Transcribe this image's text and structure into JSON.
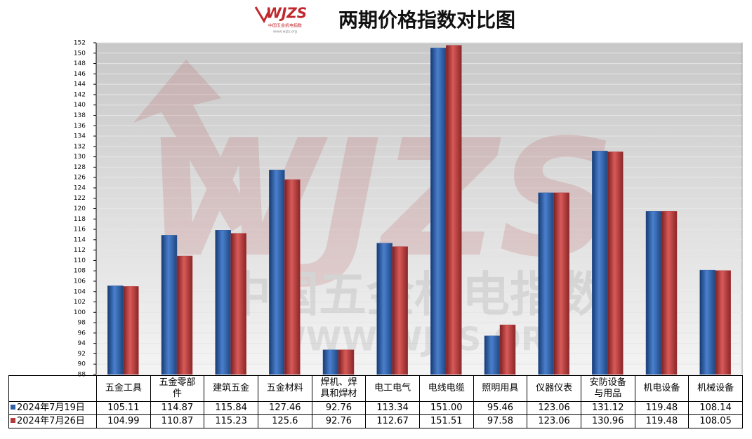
{
  "chart_data": {
    "type": "bar",
    "title": "两期价格指数对比图",
    "logo": {
      "brand": "WJZS",
      "subtitle": "中国五金机电指数",
      "url": "www.wjzs.org"
    },
    "watermark": {
      "brand": "WJZS",
      "name": "中国五金机电指数",
      "url": "WWW.WJZS.ORG"
    },
    "categories": [
      "五金工具",
      "五金零部件",
      "建筑五金",
      "五金材料",
      "焊机、焊具和焊材",
      "电工电气",
      "电线电缆",
      "照明用具",
      "仪器仪表",
      "安防设备与用品",
      "机电设备",
      "机械设备"
    ],
    "series": [
      {
        "name": "2024年7月19日",
        "color": "#2f5fa7",
        "values": [
          105.11,
          114.87,
          115.84,
          127.46,
          92.76,
          113.34,
          151.0,
          95.46,
          123.06,
          131.12,
          119.48,
          108.14
        ],
        "value_labels": [
          "105.11",
          "114.87",
          "115.84",
          "127.46",
          "92.76",
          "113.34",
          "151.00",
          "95.46",
          "123.06",
          "131.12",
          "119.48",
          "108.14"
        ]
      },
      {
        "name": "2024年7月26日",
        "color": "#b23b3b",
        "values": [
          104.99,
          110.87,
          115.23,
          125.6,
          92.76,
          112.67,
          151.51,
          97.58,
          123.06,
          130.96,
          119.48,
          108.05
        ],
        "value_labels": [
          "104.99",
          "110.87",
          "115.23",
          "125.6",
          "92.76",
          "112.67",
          "151.51",
          "97.58",
          "123.06",
          "130.96",
          "119.48",
          "108.05"
        ]
      }
    ],
    "ylim": [
      88,
      152
    ],
    "yticks": [
      88,
      90,
      92,
      94,
      96,
      98,
      100,
      102,
      104,
      106,
      108,
      110,
      112,
      114,
      116,
      118,
      120,
      122,
      124,
      126,
      128,
      130,
      132,
      134,
      136,
      138,
      140,
      142,
      144,
      146,
      148,
      150,
      152
    ],
    "grid": true
  }
}
